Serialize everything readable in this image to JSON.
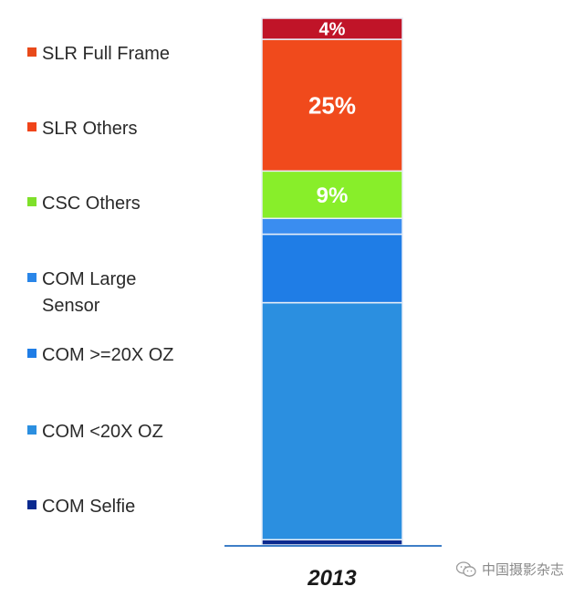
{
  "chart_data": {
    "type": "bar",
    "stacked": true,
    "categories": [
      "2013"
    ],
    "ylim": [
      0,
      100
    ],
    "grid": false,
    "legend_position": "left",
    "series": [
      {
        "name": "COM Selfie",
        "values": [
          1
        ],
        "color": "#0b2a8f",
        "data_label": ""
      },
      {
        "name": "COM <20X OZ",
        "values": [
          45
        ],
        "color": "#2b8fe0",
        "data_label": ""
      },
      {
        "name": "COM >=20X OZ",
        "values": [
          13
        ],
        "color": "#1f7de6",
        "data_label": ""
      },
      {
        "name": "COM Large Sensor",
        "values": [
          3
        ],
        "color": "#3a8df0",
        "data_label": ""
      },
      {
        "name": "CSC Others",
        "values": [
          9
        ],
        "color": "#88ee2a",
        "data_label": "9%"
      },
      {
        "name": "SLR Others",
        "values": [
          25
        ],
        "color": "#f04a1c",
        "data_label": "25%"
      },
      {
        "name": "SLR Full Frame",
        "values": [
          4
        ],
        "color": "#c01428",
        "data_label": "4%"
      }
    ]
  },
  "legend": [
    {
      "label": "SLR Full Frame",
      "color": "#e84a1a"
    },
    {
      "label": "SLR Others",
      "color": "#f0441a"
    },
    {
      "label": "CSC Others",
      "color": "#7fe02a"
    },
    {
      "label": "COM Large Sensor",
      "color": "#2a86e8"
    },
    {
      "label": "COM >=20X OZ",
      "color": "#1f7de6"
    },
    {
      "label": "COM <20X OZ",
      "color": "#2b8fe0"
    },
    {
      "label": "COM Selfie",
      "color": "#0b2a8f"
    }
  ],
  "x_tick_label": "2013",
  "watermark": {
    "text": "中国摄影杂志",
    "icon": "wechat-icon"
  }
}
